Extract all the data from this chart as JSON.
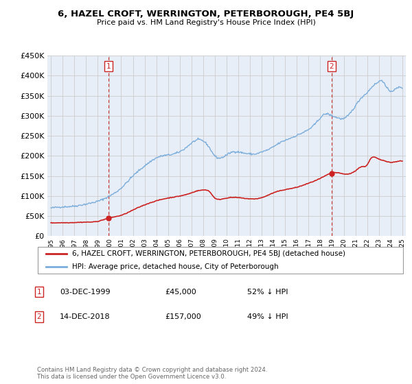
{
  "title": "6, HAZEL CROFT, WERRINGTON, PETERBOROUGH, PE4 5BJ",
  "subtitle": "Price paid vs. HM Land Registry's House Price Index (HPI)",
  "background_color": "#ffffff",
  "plot_bg_color": "#e8eef8",
  "grid_color": "#cccccc",
  "hpi_color": "#7aaddb",
  "price_color": "#cc2222",
  "sale1_date_num": 1999.92,
  "sale1_price": 45000,
  "sale2_date_num": 2018.96,
  "sale2_price": 157000,
  "legend_label_price": "6, HAZEL CROFT, WERRINGTON, PETERBOROUGH, PE4 5BJ (detached house)",
  "legend_label_hpi": "HPI: Average price, detached house, City of Peterborough",
  "note1_num": "1",
  "note1_date": "03-DEC-1999",
  "note1_price": "£45,000",
  "note1_hpi": "52% ↓ HPI",
  "note2_num": "2",
  "note2_date": "14-DEC-2018",
  "note2_price": "£157,000",
  "note2_hpi": "49% ↓ HPI",
  "footer": "Contains HM Land Registry data © Crown copyright and database right 2024.\nThis data is licensed under the Open Government Licence v3.0.",
  "ylim": [
    0,
    450000
  ],
  "xlim_start": 1994.7,
  "xlim_end": 2025.3
}
